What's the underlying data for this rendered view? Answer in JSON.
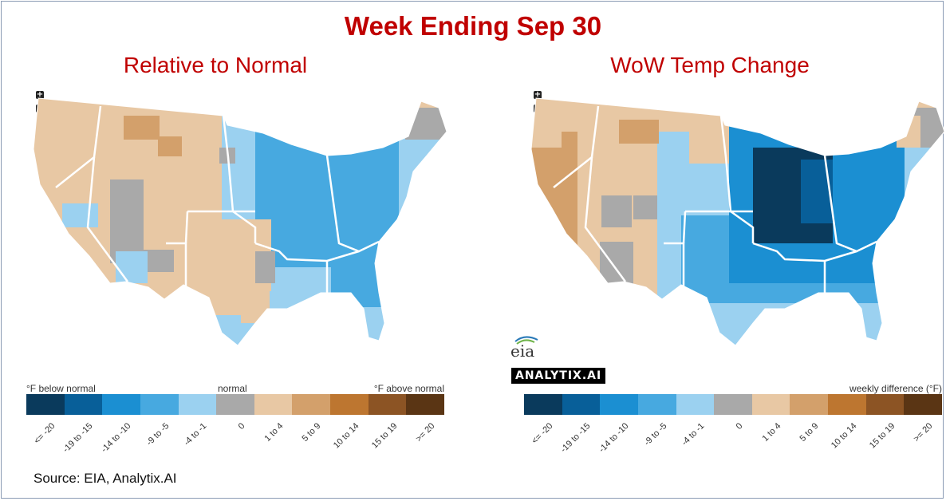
{
  "title": "Week Ending Sep 30",
  "source": "Source: EIA, Analytix.AI",
  "maps": {
    "left": {
      "subtitle": "Relative to Normal",
      "legend_left": "°F below normal",
      "legend_center": "normal",
      "legend_right": "°F above normal"
    },
    "right": {
      "subtitle": "WoW Temp Change",
      "legend_right": "weekly difference (°F)"
    }
  },
  "zoom": {
    "in": "+",
    "out": "−"
  },
  "legend": {
    "categories": [
      "<= -20",
      "-19 to -15",
      "-14 to -10",
      "-9 to -5",
      "-4 to -1",
      "0",
      "1 to 4",
      "5 to 9",
      "10 to 14",
      "15 to 19",
      ">= 20"
    ],
    "colors": [
      "#0a3a5c",
      "#085f99",
      "#1b8fd2",
      "#47a9e0",
      "#9bd1f0",
      "#a9a9a9",
      "#e8c8a4",
      "#d3a06b",
      "#bd7630",
      "#8c5424",
      "#5a3514"
    ]
  },
  "logos": {
    "eia": "eia",
    "analytix": "ANALYTIX.AI"
  }
}
